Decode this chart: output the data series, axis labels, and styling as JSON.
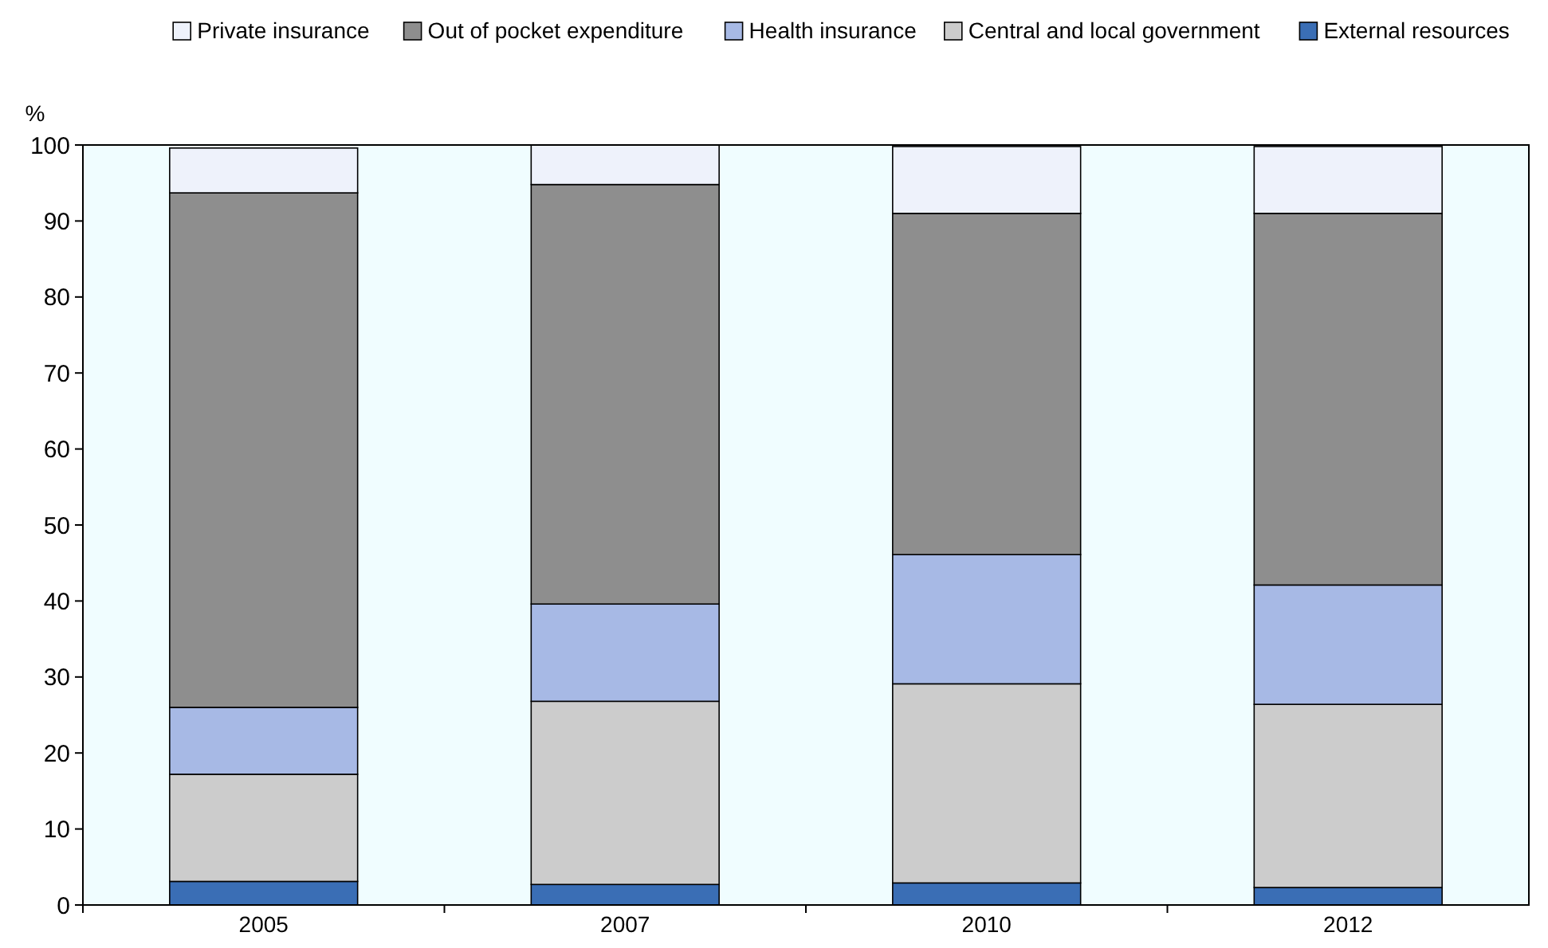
{
  "chart_data": {
    "type": "bar",
    "stacked": true,
    "ylabel": "%",
    "categories": [
      "2005",
      "2007",
      "2010",
      "2012"
    ],
    "series": [
      {
        "name": "External resources",
        "color": "#3a6eb5",
        "values": [
          3.1,
          2.7,
          2.9,
          2.3
        ]
      },
      {
        "name": "Central and local government",
        "color": "#cccccc",
        "values": [
          14.1,
          24.1,
          26.2,
          24.1
        ]
      },
      {
        "name": "Health insurance",
        "color": "#a7b9e5",
        "values": [
          8.8,
          12.8,
          17.0,
          15.7
        ]
      },
      {
        "name": "Out of pocket expenditure",
        "color": "#8e8e8e",
        "values": [
          67.7,
          55.2,
          44.9,
          48.9
        ]
      },
      {
        "name": "Private insurance",
        "color": "#eef2fb",
        "values": [
          5.9,
          5.2,
          8.8,
          8.8
        ]
      }
    ],
    "ylim": [
      0,
      100
    ],
    "yticks": [
      0,
      10,
      20,
      30,
      40,
      50,
      60,
      70,
      80,
      90,
      100
    ],
    "grid": false,
    "legend": "top"
  }
}
